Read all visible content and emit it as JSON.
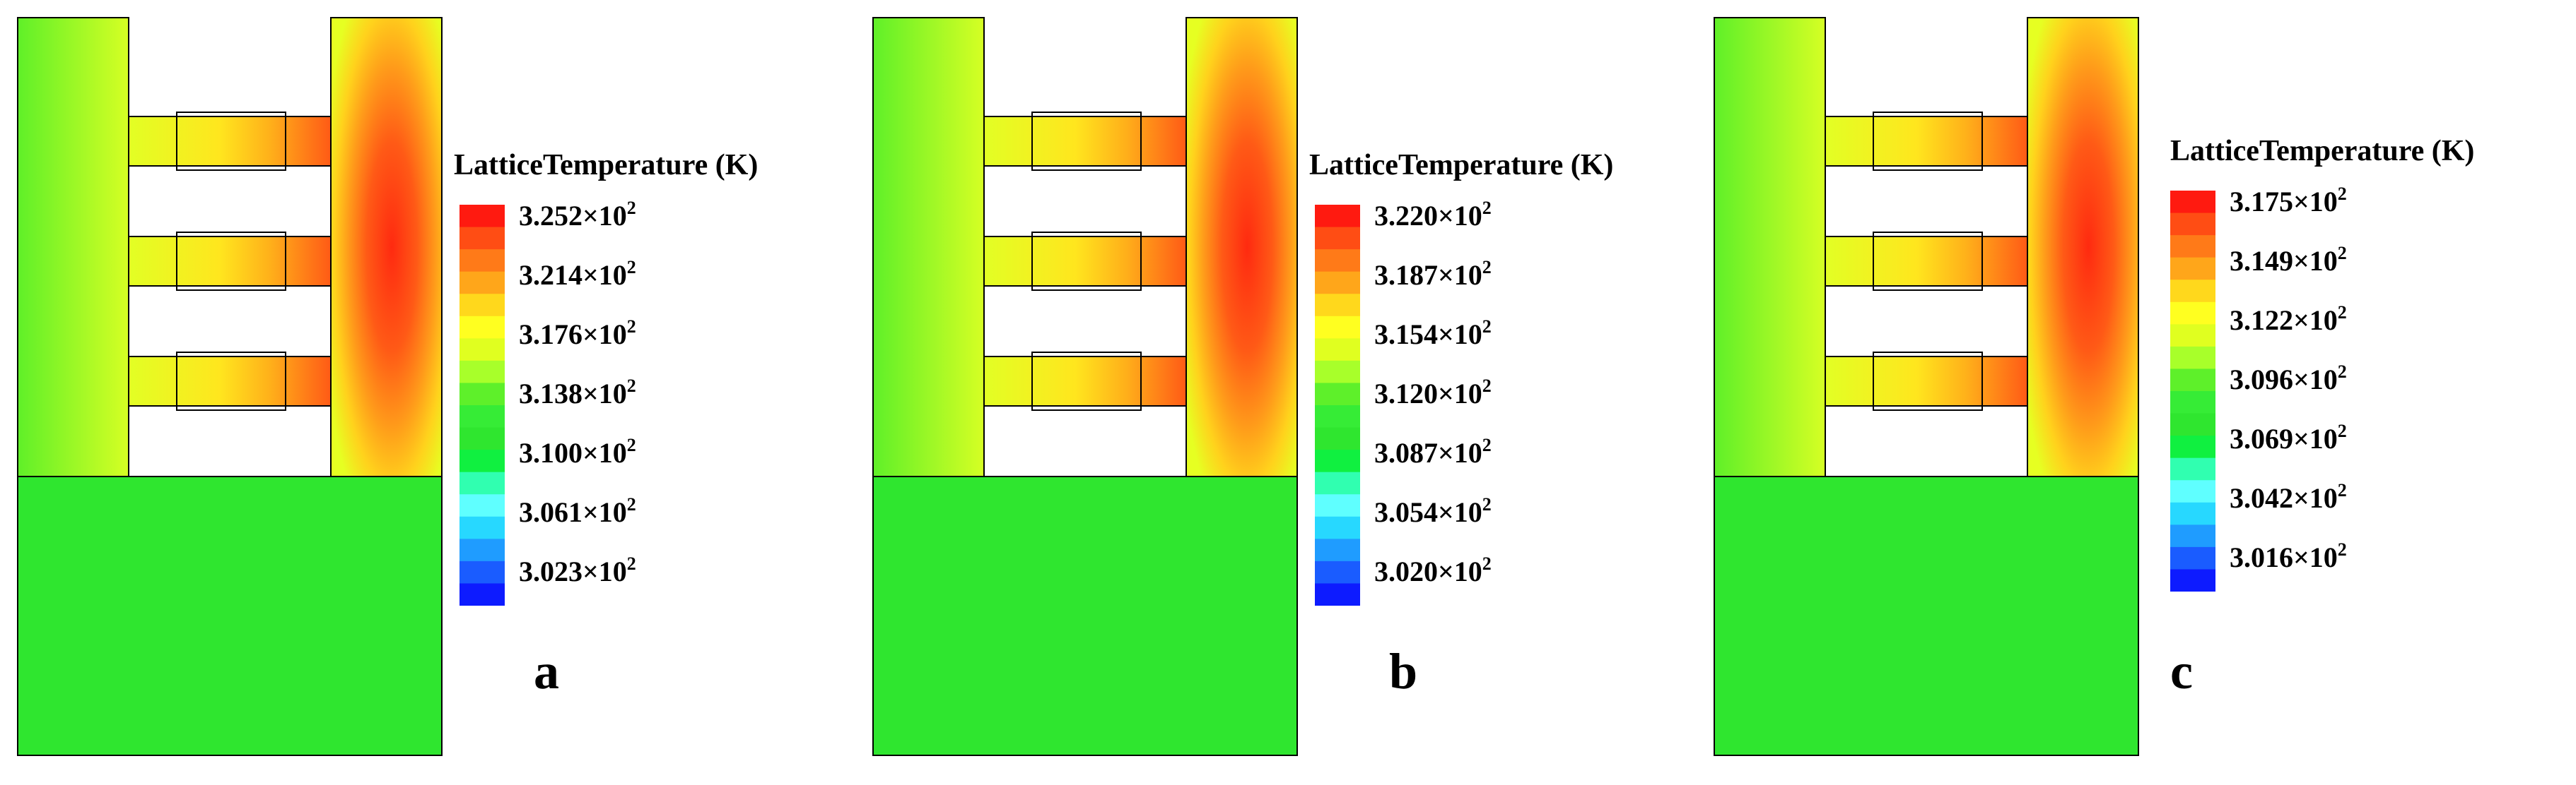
{
  "legend_title": "LatticeTemperature (K)",
  "colorbar_colors": [
    "#0d1bff",
    "#1a5cff",
    "#1f9cff",
    "#27d8ff",
    "#5fffff",
    "#30ffb0",
    "#10f040",
    "#2fe62f",
    "#36ec36",
    "#5ef02a",
    "#a8ff2a",
    "#e0ff20",
    "#ffff20",
    "#ffd81c",
    "#ffa61a",
    "#ff7a18",
    "#ff4d14",
    "#ff1a10"
  ],
  "panels": [
    {
      "letter": "a",
      "scale_labels": [
        {
          "mantissa": "3.252×10",
          "exp": "2"
        },
        {
          "mantissa": "3.214×10",
          "exp": "2"
        },
        {
          "mantissa": "3.176×10",
          "exp": "2"
        },
        {
          "mantissa": "3.138×10",
          "exp": "2"
        },
        {
          "mantissa": "3.100×10",
          "exp": "2"
        },
        {
          "mantissa": "3.061×10",
          "exp": "2"
        },
        {
          "mantissa": "3.023×10",
          "exp": "2"
        }
      ]
    },
    {
      "letter": "b",
      "scale_labels": [
        {
          "mantissa": "3.220×10",
          "exp": "2"
        },
        {
          "mantissa": "3.187×10",
          "exp": "2"
        },
        {
          "mantissa": "3.154×10",
          "exp": "2"
        },
        {
          "mantissa": "3.120×10",
          "exp": "2"
        },
        {
          "mantissa": "3.087×10",
          "exp": "2"
        },
        {
          "mantissa": "3.054×10",
          "exp": "2"
        },
        {
          "mantissa": "3.020×10",
          "exp": "2"
        }
      ]
    },
    {
      "letter": "c",
      "scale_labels": [
        {
          "mantissa": "3.175×10",
          "exp": "2"
        },
        {
          "mantissa": "3.149×10",
          "exp": "2"
        },
        {
          "mantissa": "3.122×10",
          "exp": "2"
        },
        {
          "mantissa": "3.096×10",
          "exp": "2"
        },
        {
          "mantissa": "3.069×10",
          "exp": "2"
        },
        {
          "mantissa": "3.042×10",
          "exp": "2"
        },
        {
          "mantissa": "3.016×10",
          "exp": "2"
        }
      ]
    }
  ]
}
